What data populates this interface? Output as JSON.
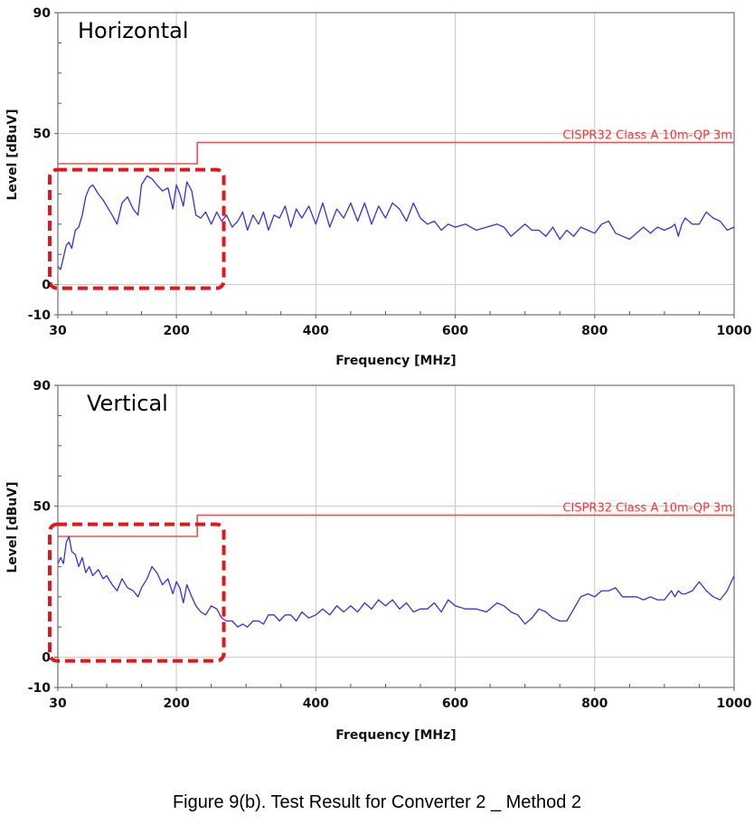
{
  "caption": "Figure 9(b). Test Result for Converter 2 _ Method 2",
  "chart_data": [
    {
      "type": "line",
      "panel_label": "Horizontal",
      "xlabel": "Frequency [MHz]",
      "ylabel": "Level [dBuV]",
      "xlim": [
        30,
        1000
      ],
      "ylim": [
        -10,
        90
      ],
      "xticks": [
        30,
        200,
        400,
        600,
        800,
        1000
      ],
      "yticks": [
        -10,
        0,
        50,
        90
      ],
      "grid": true,
      "highlight_box_x": [
        30,
        268
      ],
      "highlight_box_y": [
        0,
        38
      ],
      "highlight_box_color": "#e8141b",
      "series": [
        {
          "name": "CISPR32 Class A 10m-QP 3m",
          "color": "#f55050",
          "x": [
            30,
            230,
            230,
            1000
          ],
          "y": [
            40,
            40,
            47,
            47
          ]
        },
        {
          "color": "#2f33e6",
          "x": [
            30,
            34,
            38,
            42,
            46,
            50,
            55,
            60,
            65,
            70,
            75,
            80,
            88,
            95,
            100,
            108,
            115,
            122,
            130,
            138,
            145,
            150,
            158,
            165,
            172,
            180,
            188,
            195,
            200,
            205,
            210,
            215,
            222,
            228,
            235,
            242,
            250,
            258,
            265,
            272,
            280,
            288,
            295,
            302,
            310,
            318,
            325,
            332,
            340,
            348,
            356,
            364,
            372,
            380,
            390,
            400,
            410,
            420,
            430,
            440,
            450,
            460,
            470,
            480,
            490,
            500,
            510,
            520,
            530,
            540,
            550,
            560,
            570,
            580,
            590,
            600,
            615,
            630,
            645,
            660,
            670,
            680,
            690,
            700,
            710,
            720,
            730,
            740,
            750,
            760,
            770,
            780,
            790,
            800,
            810,
            820,
            830,
            840,
            850,
            860,
            870,
            880,
            890,
            900,
            910,
            915,
            920,
            925,
            930,
            940,
            950,
            960,
            970,
            980,
            990,
            1000
          ],
          "y": [
            6,
            5,
            9,
            13,
            14,
            12,
            18,
            19,
            23,
            29,
            32,
            33,
            30,
            28,
            26,
            23,
            20,
            27,
            29,
            25,
            23,
            33,
            36,
            35,
            33,
            31,
            32,
            25,
            33,
            30,
            26,
            34,
            31,
            23,
            22,
            24,
            20,
            24,
            21,
            23,
            19,
            21,
            24,
            18,
            23,
            20,
            24,
            18,
            23,
            22,
            26,
            19,
            25,
            22,
            26,
            20,
            27,
            19,
            25,
            22,
            27,
            21,
            27,
            20,
            26,
            22,
            27,
            25,
            21,
            27,
            22,
            20,
            21,
            18,
            20,
            19,
            20,
            18,
            19,
            20,
            19,
            16,
            18,
            20,
            18,
            18,
            16,
            19,
            15,
            18,
            16,
            19,
            18,
            17,
            20,
            21,
            17,
            16,
            15,
            17,
            19,
            17,
            19,
            18,
            19,
            20,
            16,
            20,
            22,
            20,
            20,
            24,
            22,
            21,
            18,
            19
          ]
        }
      ]
    },
    {
      "type": "line",
      "panel_label": "Vertical",
      "xlabel": "Frequency [MHz]",
      "ylabel": "Level [dBuV]",
      "xlim": [
        30,
        1000
      ],
      "ylim": [
        -10,
        90
      ],
      "xticks": [
        30,
        200,
        400,
        600,
        800,
        1000
      ],
      "yticks": [
        -10,
        0,
        50,
        90
      ],
      "grid": true,
      "highlight_box_x": [
        30,
        268
      ],
      "highlight_box_y": [
        0,
        44
      ],
      "highlight_box_color": "#e8141b",
      "series": [
        {
          "name": "CISPR32 Class A 10m-QP 3m",
          "color": "#f55050",
          "x": [
            30,
            230,
            230,
            1000
          ],
          "y": [
            40,
            40,
            47,
            47
          ]
        },
        {
          "color": "#2f33e6",
          "x": [
            30,
            34,
            38,
            42,
            46,
            50,
            55,
            60,
            65,
            70,
            75,
            80,
            88,
            95,
            100,
            108,
            115,
            122,
            130,
            138,
            145,
            150,
            158,
            165,
            172,
            180,
            188,
            195,
            200,
            205,
            210,
            215,
            222,
            228,
            235,
            242,
            250,
            258,
            265,
            272,
            280,
            288,
            295,
            302,
            310,
            318,
            325,
            332,
            340,
            348,
            356,
            364,
            372,
            380,
            390,
            400,
            410,
            420,
            430,
            440,
            450,
            460,
            470,
            480,
            490,
            500,
            510,
            520,
            530,
            540,
            550,
            560,
            570,
            580,
            590,
            600,
            615,
            630,
            645,
            660,
            670,
            680,
            690,
            700,
            710,
            720,
            730,
            740,
            750,
            760,
            770,
            780,
            790,
            800,
            810,
            820,
            830,
            840,
            850,
            860,
            870,
            880,
            890,
            900,
            910,
            915,
            920,
            925,
            930,
            940,
            950,
            960,
            970,
            980,
            990,
            1000
          ],
          "y": [
            31,
            33,
            31,
            38,
            40,
            35,
            34,
            30,
            33,
            28,
            30,
            27,
            29,
            26,
            27,
            24,
            22,
            26,
            23,
            22,
            20,
            23,
            26,
            30,
            28,
            24,
            26,
            21,
            25,
            23,
            18,
            24,
            20,
            17,
            15,
            14,
            17,
            16,
            13,
            12,
            12,
            10,
            11,
            10,
            12,
            12,
            11,
            14,
            14,
            12,
            14,
            14,
            12,
            15,
            13,
            14,
            16,
            14,
            17,
            15,
            17,
            15,
            18,
            16,
            19,
            17,
            19,
            16,
            18,
            15,
            16,
            16,
            18,
            15,
            19,
            17,
            16,
            16,
            15,
            18,
            17,
            15,
            14,
            11,
            13,
            16,
            15,
            13,
            12,
            12,
            16,
            20,
            21,
            20,
            22,
            22,
            23,
            20,
            20,
            20,
            19,
            20,
            19,
            19,
            22,
            20,
            22,
            21,
            21,
            22,
            25,
            22,
            20,
            19,
            22,
            27
          ]
        }
      ]
    }
  ]
}
